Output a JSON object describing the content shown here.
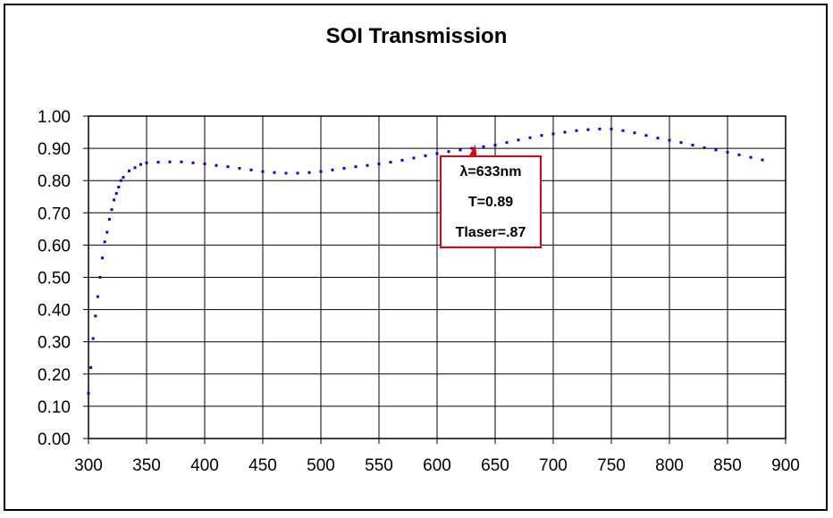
{
  "colors": {
    "series": "#0000ff",
    "annotation_border": "#e3000f",
    "annotation_arrow": "#e3000f",
    "grid": "#000000"
  },
  "chart_data": {
    "type": "scatter",
    "title": "SOI Transmission",
    "xlabel": "",
    "ylabel": "",
    "xlim": [
      300,
      900
    ],
    "ylim": [
      0,
      1.0
    ],
    "grid": true,
    "x_ticks": [
      "300",
      "350",
      "400",
      "450",
      "500",
      "550",
      "600",
      "650",
      "700",
      "750",
      "800",
      "850",
      "900"
    ],
    "y_ticks": [
      "0.00",
      "0.10",
      "0.20",
      "0.30",
      "0.40",
      "0.50",
      "0.60",
      "0.70",
      "0.80",
      "0.90",
      "1.00"
    ],
    "series": [
      {
        "x": [
          300,
          302,
          304,
          306,
          308,
          310,
          312,
          314,
          316,
          318,
          320,
          322,
          324,
          326,
          328,
          330,
          335,
          340,
          345,
          350,
          360,
          370,
          380,
          390,
          400,
          410,
          420,
          430,
          440,
          450,
          460,
          470,
          480,
          490,
          500,
          510,
          520,
          530,
          540,
          550,
          560,
          570,
          580,
          590,
          600,
          610,
          620,
          630,
          640,
          650,
          660,
          670,
          680,
          690,
          700,
          710,
          720,
          730,
          740,
          750,
          760,
          770,
          780,
          790,
          800,
          810,
          820,
          830,
          840,
          850,
          860,
          870,
          880
        ],
        "y": [
          0.14,
          0.22,
          0.31,
          0.38,
          0.44,
          0.5,
          0.56,
          0.61,
          0.64,
          0.68,
          0.71,
          0.74,
          0.76,
          0.78,
          0.8,
          0.81,
          0.83,
          0.84,
          0.85,
          0.855,
          0.857,
          0.858,
          0.858,
          0.855,
          0.852,
          0.847,
          0.843,
          0.838,
          0.833,
          0.828,
          0.825,
          0.823,
          0.823,
          0.825,
          0.828,
          0.833,
          0.838,
          0.843,
          0.847,
          0.852,
          0.857,
          0.863,
          0.87,
          0.877,
          0.884,
          0.89,
          0.895,
          0.9,
          0.905,
          0.91,
          0.918,
          0.926,
          0.933,
          0.94,
          0.945,
          0.95,
          0.955,
          0.958,
          0.96,
          0.96,
          0.955,
          0.948,
          0.94,
          0.932,
          0.925,
          0.918,
          0.91,
          0.902,
          0.895,
          0.888,
          0.88,
          0.872,
          0.864
        ]
      }
    ],
    "annotations": [
      {
        "lambda_label": "λ=633nm",
        "t_label": "T=0.89",
        "tlaser_label": "Tlaser=.87",
        "x": 633,
        "y": 0.89
      }
    ]
  }
}
